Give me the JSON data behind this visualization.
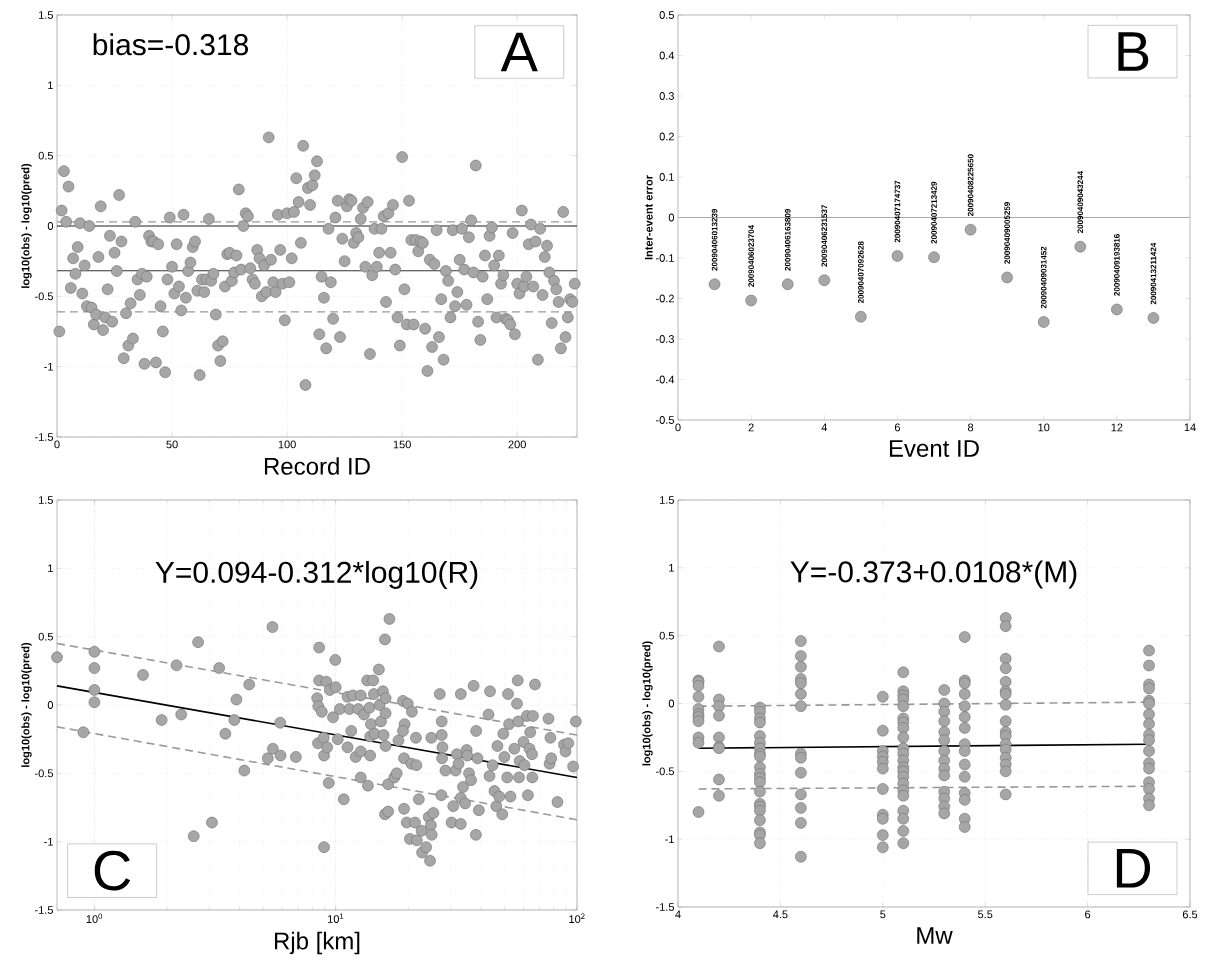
{
  "chart_data": [
    {
      "type": "scatter",
      "xlabel": "Record ID",
      "ylabel": "log10(obs) - log10(pred)",
      "xlim": [
        0,
        226
      ],
      "ylim": [
        -1.5,
        1.5
      ],
      "xticks": [
        0,
        50,
        100,
        150,
        200
      ],
      "yticks": [
        -1.5,
        -1,
        -0.5,
        0,
        0.5,
        1,
        1.5
      ],
      "grid": true,
      "marker": "circle",
      "annotations": [
        "bias=-0.318",
        "A"
      ],
      "ref_lines": [
        {
          "axis": "y",
          "value": 0,
          "color": "#222222",
          "line_style": "solid"
        },
        {
          "axis": "y",
          "value": -0.318,
          "color": "#333333",
          "line_style": "solid"
        },
        {
          "axis": "y",
          "value": 0.03,
          "color": "#999999",
          "line_style": "dashed"
        },
        {
          "axis": "y",
          "value": -0.61,
          "color": "#999999",
          "line_style": "dashed"
        }
      ],
      "series": [
        {
          "color": "#a6a6a6",
          "x": [
            1,
            2,
            3,
            4,
            5,
            6,
            7,
            8,
            9,
            10,
            11,
            12,
            13,
            14,
            15,
            16,
            17,
            18,
            19,
            20,
            21,
            22,
            23,
            24,
            25,
            26,
            27,
            28,
            29,
            30,
            31,
            32,
            33,
            34,
            35,
            36,
            37,
            38,
            39,
            40,
            41,
            42,
            43,
            44,
            45,
            46,
            47,
            48,
            49,
            50,
            51,
            52,
            53,
            54,
            55,
            56,
            57,
            58,
            59,
            60,
            61,
            62,
            63,
            64,
            65,
            66,
            67,
            68,
            69,
            70,
            71,
            72,
            73,
            74,
            75,
            76,
            77,
            78,
            79,
            80,
            81,
            82,
            83,
            84,
            85,
            86,
            87,
            88,
            89,
            90,
            91,
            92,
            93,
            94,
            95,
            96,
            97,
            98,
            99,
            100,
            101,
            102,
            103,
            104,
            105,
            106,
            107,
            108,
            109,
            110,
            111,
            112,
            113,
            114,
            115,
            116,
            117,
            118,
            119,
            120,
            121,
            122,
            123,
            124,
            125,
            126,
            127,
            128,
            129,
            130,
            131,
            132,
            133,
            134,
            135,
            136,
            137,
            138,
            139,
            140,
            141,
            142,
            143,
            144,
            145,
            146,
            147,
            148,
            149,
            150,
            151,
            152,
            153,
            154,
            155,
            156,
            157,
            158,
            159,
            160,
            161,
            162,
            163,
            164,
            165,
            166,
            167,
            168,
            169,
            170,
            171,
            172,
            173,
            174,
            175,
            176,
            177,
            178,
            179,
            180,
            181,
            182,
            183,
            184,
            185,
            186,
            187,
            188,
            189,
            190,
            191,
            192,
            193,
            194,
            195,
            196,
            197,
            198,
            199,
            200,
            201,
            202,
            203,
            204,
            205,
            206,
            207,
            208,
            209,
            210,
            211,
            212,
            213,
            214,
            215,
            216,
            217,
            218,
            219,
            220,
            221,
            222,
            223,
            224,
            225
          ],
          "values": [
            -0.75,
            0.11,
            0.39,
            0.03,
            0.28,
            -0.44,
            -0.23,
            -0.34,
            -0.15,
            0.02,
            -0.48,
            -0.28,
            -0.57,
            0.0,
            -0.58,
            -0.7,
            -0.63,
            -0.22,
            0.14,
            -0.74,
            -0.65,
            -0.45,
            -0.07,
            -0.68,
            -0.19,
            -0.32,
            0.22,
            -0.11,
            -0.94,
            -0.62,
            -0.85,
            -0.55,
            -0.8,
            0.03,
            -0.38,
            -0.49,
            -0.34,
            -0.98,
            -0.36,
            -0.07,
            -0.11,
            -0.11,
            -0.97,
            -0.13,
            -0.57,
            -0.75,
            -1.04,
            -0.38,
            0.06,
            -0.29,
            -0.48,
            -0.13,
            -0.43,
            -0.6,
            0.08,
            -0.51,
            -0.32,
            -0.26,
            -0.15,
            -0.11,
            -0.46,
            -1.06,
            -0.38,
            -0.47,
            -0.38,
            0.05,
            -0.39,
            -0.34,
            -0.63,
            -0.85,
            -0.96,
            -0.82,
            -0.43,
            -0.2,
            -0.19,
            -0.39,
            -0.33,
            -0.21,
            0.26,
            -0.31,
            0.0,
            0.09,
            0.07,
            -0.3,
            -0.38,
            -0.41,
            -0.17,
            -0.23,
            -0.5,
            -0.28,
            -0.47,
            0.63,
            -0.24,
            -0.4,
            -0.47,
            0.08,
            -0.17,
            -0.41,
            -0.67,
            0.09,
            -0.4,
            -0.23,
            0.1,
            0.34,
            0.17,
            -0.12,
            0.57,
            -1.13,
            0.27,
            0.15,
            0.29,
            0.36,
            0.46,
            -0.77,
            -0.36,
            -0.51,
            -0.87,
            -0.02,
            -0.4,
            -0.66,
            0.06,
            0.18,
            -0.79,
            -0.09,
            -0.25,
            0.14,
            0.19,
            0.18,
            -0.12,
            -0.05,
            -0.08,
            0.05,
            0.13,
            -0.29,
            0.17,
            -0.91,
            -0.35,
            -0.02,
            -0.29,
            -0.19,
            -0.02,
            0.07,
            -0.54,
            0.09,
            -0.19,
            0.15,
            -0.31,
            -0.65,
            -0.85,
            0.49,
            -0.45,
            -0.7,
            0.18,
            -0.1,
            -0.7,
            -0.1,
            -0.18,
            -0.11,
            -0.12,
            -0.73,
            -1.03,
            -0.24,
            -0.86,
            -0.27,
            -0.03,
            -0.79,
            -0.52,
            -0.95,
            -0.32,
            -0.39,
            -0.65,
            -0.03,
            -0.57,
            -0.47,
            -0.24,
            -0.02,
            -0.31,
            -0.56,
            -0.08,
            0.04,
            -0.33,
            0.43,
            -0.68,
            -0.81,
            -0.36,
            -0.21,
            -0.52,
            -0.07,
            -0.01,
            -0.28,
            -0.65,
            -0.21,
            -0.41,
            -0.35,
            -0.66,
            -0.67,
            -0.7,
            -0.05,
            -0.77,
            -0.41,
            -0.48,
            0.11,
            -0.43,
            -0.36,
            -0.13,
            0.01,
            -0.43,
            -0.11,
            -0.95,
            -0.02,
            -0.49,
            -0.22,
            -0.14,
            -0.33,
            -0.69,
            -0.39,
            -0.45,
            -0.54,
            -0.87,
            0.1,
            -0.79,
            -0.65,
            -0.52,
            -0.54,
            -0.41
          ]
        }
      ]
    },
    {
      "type": "scatter",
      "xlabel": "Event ID",
      "ylabel": "Inter-event error",
      "xlim": [
        0,
        14
      ],
      "ylim": [
        -0.5,
        0.5
      ],
      "xticks": [
        0,
        2,
        4,
        6,
        8,
        10,
        12,
        14
      ],
      "yticks": [
        -0.5,
        -0.4,
        -0.3,
        -0.2,
        -0.1,
        0,
        0.1,
        0.2,
        0.3,
        0.4,
        0.5
      ],
      "grid": false,
      "marker": "circle",
      "annotations": [
        "B",
        {
          "text": "20090406013239",
          "x": 1,
          "y": -0.165
        },
        {
          "text": "20090406023704",
          "x": 2,
          "y": -0.205
        },
        {
          "text": "20090406163809",
          "x": 3,
          "y": -0.165
        },
        {
          "text": "20090406231537",
          "x": 4,
          "y": -0.155
        },
        {
          "text": "20090407092628",
          "x": 5,
          "y": -0.245
        },
        {
          "text": "20090407174737",
          "x": 6,
          "y": -0.095
        },
        {
          "text": "20090407213429",
          "x": 7,
          "y": -0.098
        },
        {
          "text": "20090408225650",
          "x": 8,
          "y": -0.03
        },
        {
          "text": "20090409005259",
          "x": 9,
          "y": -0.148
        },
        {
          "text": "20090409031452",
          "x": 10,
          "y": -0.258
        },
        {
          "text": "20090409043244",
          "x": 11,
          "y": -0.072
        },
        {
          "text": "20090409193816",
          "x": 12,
          "y": -0.227
        },
        {
          "text": "20090413211424",
          "x": 13,
          "y": -0.248
        }
      ],
      "ref_lines": [
        {
          "axis": "y",
          "value": 0,
          "color": "#aaaaaa",
          "line_style": "solid"
        }
      ],
      "series": [
        {
          "color": "#a6a6a6",
          "x": [
            1,
            2,
            3,
            4,
            5,
            6,
            7,
            8,
            9,
            10,
            11,
            12,
            13
          ],
          "values": [
            -0.165,
            -0.205,
            -0.165,
            -0.155,
            -0.245,
            -0.095,
            -0.098,
            -0.03,
            -0.148,
            -0.258,
            -0.072,
            -0.227,
            -0.248
          ]
        }
      ]
    },
    {
      "type": "scatter",
      "xlabel": "Rjb [km]",
      "ylabel": "log10(obs) - log10(pred)",
      "log": "x",
      "xlim": [
        0.7,
        100
      ],
      "ylim": [
        -1.5,
        1.5
      ],
      "xticks": [
        {
          "value": 1,
          "label": "10$^{0}$"
        },
        {
          "value": 10,
          "label": "10$^{1}$"
        },
        {
          "value": 100,
          "label": "10$^{2}$"
        }
      ],
      "yticks": [
        -1.5,
        -1,
        -0.5,
        0,
        0.5,
        1,
        1.5
      ],
      "grid": true,
      "marker": "circle",
      "annotations": [
        "Y=0.094-0.312*log10(R)",
        "C"
      ],
      "series": [
        {
          "color": "#a6a6a6",
          "x": [
            0.7,
            1.0,
            1.0,
            1.0,
            1.0,
            0.9,
            1.59,
            1.9,
            2.19,
            2.29,
            2.58,
            2.69,
            3.07,
            3.29,
            3.49,
            3.8,
            3.88,
            4.18,
            4.38,
            5.23,
            5.47,
            5.49,
            5.89,
            5.91,
            6.84,
            8.38,
            8.47,
            8.54,
            8.54,
            8.45,
            8.76,
            8.92,
            8.95,
            8.95,
            9.15,
            9.22,
            9.36,
            9.46,
            9.96,
            10.0,
            10.2,
            9.75,
            10.4,
            10.8,
            11.2,
            11.2,
            11.4,
            11.6,
            11.8,
            12.1,
            12.4,
            12.7,
            12.7,
            12.7,
            13.1,
            13.5,
            13.6,
            13.8,
            13.9,
            13.9,
            14.0,
            14.3,
            14.4,
            14.5,
            15.1,
            15.2,
            15.4,
            15.7,
            15.8,
            16.0,
            16.1,
            16.1,
            16.1,
            16.0,
            16.5,
            16.5,
            16.7,
            17.5,
            17.9,
            18.2,
            19.0,
            19.3,
            19.2,
            19.2,
            19.0,
            19.7,
            19.9,
            20.3,
            20.6,
            20.7,
            21.3,
            21.5,
            21.6,
            21.7,
            22.1,
            22.7,
            22.8,
            23.7,
            24.3,
            24.6,
            24.8,
            24.9,
            25.0,
            25.4,
            27.0,
            27.4,
            27.5,
            27.5,
            27.7,
            27.6,
            28.5,
            30.2,
            30.7,
            31.4,
            31.8,
            32.3,
            33.0,
            33.0,
            33.0,
            33.7,
            34.4,
            34.9,
            35.1,
            35.7,
            36.4,
            37.3,
            38.1,
            38.2,
            38.7,
            39.2,
            43.0,
            43.6,
            43.4,
            44.7,
            45.5,
            46.3,
            46.8,
            47.6,
            49.0,
            49.5,
            50.0,
            51.4,
            51.8,
            52.3,
            53.0,
            55.0,
            56.4,
            56.8,
            57.1,
            57.5,
            57.9,
            60.0,
            60.6,
            62.0,
            62.6,
            63.6,
            64.0,
            65.1,
            65.3,
            65.7,
            67.0,
            76.2,
            77.0,
            77.6,
            78.2,
            83.0,
            88.3,
            89.6,
            92.0,
            96.4,
            98.9
          ],
          "values": [
            0.35,
            0.39,
            0.27,
            0.11,
            0.02,
            -0.2,
            0.22,
            -0.11,
            0.29,
            -0.07,
            -0.96,
            0.46,
            -0.86,
            0.27,
            -0.21,
            -0.11,
            0.04,
            -0.48,
            0.15,
            -0.39,
            0.57,
            -0.32,
            -0.13,
            -0.37,
            -0.38,
            0.05,
            -0.01,
            0.42,
            0.18,
            -0.28,
            -0.05,
            -0.24,
            -0.37,
            -1.04,
            0.17,
            -0.31,
            -0.57,
            0.11,
            0.33,
            0.13,
            -0.25,
            -0.09,
            -0.03,
            -0.69,
            0.06,
            -0.31,
            -0.03,
            -0.19,
            0.07,
            -0.38,
            -0.03,
            -0.34,
            0.07,
            -0.53,
            -0.07,
            0.18,
            -0.59,
            -0.02,
            -0.23,
            -0.37,
            -0.14,
            0.18,
            0.08,
            -0.21,
            0.26,
            0.0,
            -0.12,
            0.1,
            -0.22,
            0.48,
            -0.06,
            0.05,
            -0.3,
            -0.8,
            -0.78,
            -0.58,
            0.63,
            -0.53,
            -0.5,
            -0.26,
            0.03,
            -0.14,
            -0.76,
            -0.39,
            -0.19,
            -0.86,
            0.01,
            -0.98,
            -0.43,
            -0.05,
            -0.86,
            -0.24,
            -0.44,
            -0.99,
            -0.69,
            -0.92,
            -1.08,
            -1.04,
            -0.82,
            -1.14,
            -0.88,
            -0.24,
            -0.95,
            -0.79,
            0.08,
            -0.66,
            -0.12,
            -0.22,
            -0.31,
            -0.39,
            -0.48,
            -0.86,
            -0.74,
            -0.48,
            -0.36,
            -0.43,
            0.08,
            -0.87,
            -0.68,
            -0.6,
            -0.72,
            -0.33,
            -0.37,
            -0.5,
            -0.55,
            0.14,
            -0.95,
            -0.19,
            -0.39,
            -0.77,
            -0.07,
            0.1,
            -0.52,
            -0.44,
            -0.63,
            -0.74,
            -0.3,
            -0.67,
            -0.8,
            -0.21,
            -0.38,
            -0.53,
            0.08,
            -0.14,
            -0.67,
            -0.32,
            0.01,
            0.18,
            -0.12,
            -0.53,
            -0.41,
            -0.27,
            -0.44,
            -0.08,
            -0.66,
            -0.32,
            -0.2,
            -0.36,
            -0.53,
            -0.08,
            0.15,
            -0.1,
            -0.43,
            -0.24,
            -0.39,
            -0.71,
            -0.29,
            -0.34,
            -0.28,
            -0.45,
            -0.12
          ]
        },
        {
          "type": "line",
          "color": "#000000",
          "marker": "none",
          "line_style": "solid",
          "x": [
            0.7,
            100
          ],
          "values": [
            0.14,
            -0.53
          ]
        },
        {
          "type": "line",
          "color": "#999999",
          "marker": "none",
          "line_style": "dashed",
          "x": [
            0.7,
            100
          ],
          "values": [
            0.45,
            -0.22
          ]
        },
        {
          "type": "line",
          "color": "#999999",
          "marker": "none",
          "line_style": "dashed",
          "x": [
            0.7,
            100
          ],
          "values": [
            -0.16,
            -0.84
          ]
        }
      ]
    },
    {
      "type": "scatter",
      "xlabel": "Mw",
      "ylabel": "log10(obs) - log10(pred)",
      "xlim": [
        4,
        6.5
      ],
      "ylim": [
        -1.5,
        1.5
      ],
      "xticks": [
        4,
        4.5,
        5,
        5.5,
        6,
        6.5
      ],
      "yticks": [
        -1.5,
        -1,
        -0.5,
        0,
        0.5,
        1,
        1.5
      ],
      "grid": true,
      "marker": "circle",
      "annotations": [
        "Y=-0.373+0.0108*(M)",
        "D"
      ],
      "series": [
        {
          "color": "#a6a6a6",
          "x": [
            4.1,
            4.1,
            4.1,
            4.1,
            4.1,
            4.1,
            4.1,
            4.1,
            4.1,
            4.1,
            4.1,
            4.2,
            4.2,
            4.2,
            4.2,
            4.2,
            4.2,
            4.2,
            4.2,
            4.2,
            4.4,
            4.4,
            4.4,
            4.4,
            4.4,
            4.4,
            4.4,
            4.4,
            4.4,
            4.4,
            4.4,
            4.4,
            4.4,
            4.4,
            4.4,
            4.4,
            4.4,
            4.4,
            4.4,
            4.4,
            4.4,
            4.6,
            4.6,
            4.6,
            4.6,
            4.6,
            4.6,
            4.6,
            4.6,
            4.6,
            4.6,
            4.6,
            4.6,
            4.6,
            4.6,
            5.0,
            5.0,
            5.0,
            5.0,
            5.0,
            5.0,
            5.0,
            5.0,
            5.0,
            5.0,
            5.0,
            5.1,
            5.1,
            5.1,
            5.1,
            5.1,
            5.1,
            5.1,
            5.1,
            5.1,
            5.1,
            5.1,
            5.1,
            5.1,
            5.1,
            5.1,
            5.1,
            5.1,
            5.1,
            5.1,
            5.1,
            5.1,
            5.1,
            5.3,
            5.3,
            5.3,
            5.3,
            5.3,
            5.3,
            5.3,
            5.3,
            5.3,
            5.3,
            5.3,
            5.3,
            5.3,
            5.3,
            5.4,
            5.4,
            5.4,
            5.4,
            5.4,
            5.4,
            5.4,
            5.4,
            5.4,
            5.4,
            5.4,
            5.4,
            5.4,
            5.4,
            5.4,
            5.6,
            5.6,
            5.6,
            5.6,
            5.6,
            5.6,
            5.6,
            5.6,
            5.6,
            5.6,
            5.6,
            5.6,
            5.6,
            5.6,
            5.6,
            5.6,
            5.6,
            6.3,
            6.3,
            6.3,
            6.3,
            6.3,
            6.3,
            6.3,
            6.3,
            6.3,
            6.3,
            6.3,
            6.3,
            6.3,
            6.3,
            6.3,
            6.3,
            6.3
          ],
          "values": [
            0.17,
            0.16,
            0.13,
            0.05,
            -0.04,
            -0.08,
            -0.1,
            -0.13,
            -0.25,
            -0.29,
            -0.8,
            0.42,
            0.03,
            -0.02,
            -0.09,
            -0.25,
            -0.32,
            -0.33,
            -0.56,
            -0.68,
            -0.03,
            -0.06,
            -0.11,
            -0.14,
            -0.24,
            -0.29,
            -0.33,
            -0.37,
            -0.39,
            -0.47,
            -0.52,
            -0.55,
            -0.58,
            -0.65,
            -0.74,
            -0.76,
            -0.79,
            -0.86,
            -0.95,
            -0.97,
            -1.03,
            0.46,
            0.35,
            0.27,
            0.18,
            0.15,
            0.07,
            -0.02,
            -0.37,
            -0.4,
            -0.51,
            -0.67,
            -0.77,
            -0.88,
            -1.13,
            0.05,
            -0.2,
            -0.35,
            -0.39,
            -0.43,
            -0.48,
            -0.63,
            -0.82,
            -0.85,
            -0.97,
            -1.06,
            0.23,
            0.09,
            0.06,
            0.03,
            -0.02,
            -0.11,
            -0.14,
            -0.18,
            -0.25,
            -0.33,
            -0.37,
            -0.42,
            -0.47,
            -0.5,
            -0.54,
            -0.59,
            -0.64,
            -0.68,
            -0.79,
            -0.85,
            -0.94,
            -1.03,
            0.1,
            0.0,
            -0.06,
            -0.13,
            -0.21,
            -0.27,
            -0.35,
            -0.42,
            -0.48,
            -0.53,
            -0.65,
            -0.7,
            -0.76,
            -0.81,
            0.49,
            0.17,
            0.15,
            0.07,
            -0.02,
            -0.1,
            -0.18,
            -0.3,
            -0.35,
            -0.45,
            -0.54,
            -0.66,
            -0.71,
            -0.85,
            -0.91,
            0.63,
            0.57,
            0.33,
            0.26,
            0.16,
            0.09,
            0.07,
            -0.01,
            -0.13,
            -0.21,
            -0.24,
            -0.3,
            -0.34,
            -0.4,
            -0.45,
            -0.5,
            -0.67,
            0.39,
            0.28,
            0.14,
            0.11,
            0.02,
            0.0,
            -0.08,
            -0.15,
            -0.23,
            -0.27,
            -0.35,
            -0.44,
            -0.48,
            -0.58,
            -0.63,
            -0.7,
            -0.75
          ]
        },
        {
          "type": "line",
          "color": "#000000",
          "marker": "none",
          "line_style": "solid",
          "x": [
            4.1,
            6.3
          ],
          "values": [
            -0.33,
            -0.3
          ]
        },
        {
          "type": "line",
          "color": "#999999",
          "marker": "none",
          "line_style": "dashed",
          "x": [
            4.1,
            6.3
          ],
          "values": [
            -0.02,
            0.01
          ]
        },
        {
          "type": "line",
          "color": "#999999",
          "marker": "none",
          "line_style": "dashed",
          "x": [
            4.1,
            6.3
          ],
          "values": [
            -0.63,
            -0.61
          ]
        }
      ]
    }
  ]
}
